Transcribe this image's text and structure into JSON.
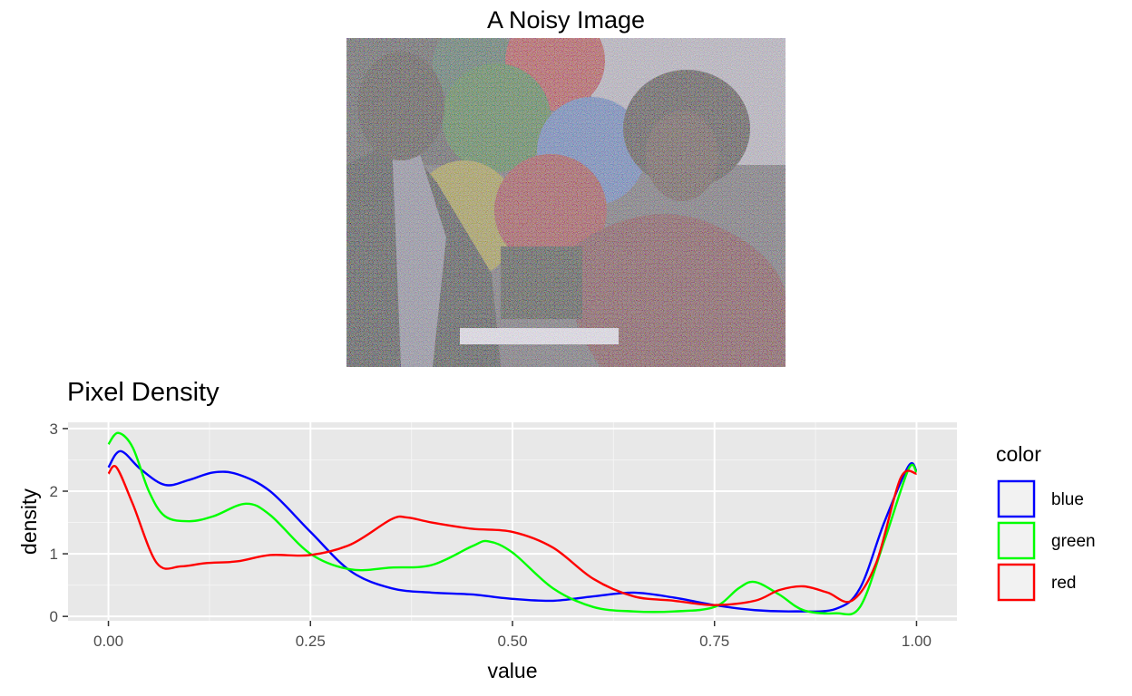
{
  "image_panel": {
    "title": "A Noisy Image"
  },
  "chart_data": {
    "type": "line",
    "title": "Pixel Density",
    "xlabel": "value",
    "ylabel": "density",
    "xlim": [
      -0.05,
      1.05
    ],
    "ylim": [
      -0.07,
      3.1
    ],
    "x_ticks": [
      0,
      0.25,
      0.5,
      0.75,
      1.0
    ],
    "x_tick_labels": [
      "0.00",
      "0.25",
      "0.50",
      "0.75",
      "1.00"
    ],
    "y_ticks": [
      0,
      1,
      2,
      3
    ],
    "y_tick_labels": [
      "0",
      "1",
      "2",
      "3"
    ],
    "grid": true,
    "background": "#e8e8e8",
    "legend": {
      "title": "color",
      "placement": "right",
      "entries": [
        "blue",
        "green",
        "red"
      ]
    },
    "series": [
      {
        "name": "blue",
        "color": "#0000ff",
        "points": [
          [
            0,
            2.38
          ],
          [
            0.015,
            2.64
          ],
          [
            0.04,
            2.35
          ],
          [
            0.07,
            2.1
          ],
          [
            0.1,
            2.18
          ],
          [
            0.13,
            2.3
          ],
          [
            0.16,
            2.27
          ],
          [
            0.2,
            2.0
          ],
          [
            0.25,
            1.35
          ],
          [
            0.3,
            0.72
          ],
          [
            0.35,
            0.45
          ],
          [
            0.4,
            0.38
          ],
          [
            0.45,
            0.35
          ],
          [
            0.5,
            0.28
          ],
          [
            0.55,
            0.25
          ],
          [
            0.6,
            0.32
          ],
          [
            0.65,
            0.38
          ],
          [
            0.7,
            0.3
          ],
          [
            0.75,
            0.18
          ],
          [
            0.8,
            0.1
          ],
          [
            0.85,
            0.08
          ],
          [
            0.9,
            0.12
          ],
          [
            0.93,
            0.45
          ],
          [
            0.96,
            1.5
          ],
          [
            0.99,
            2.4
          ],
          [
            1.0,
            2.32
          ]
        ]
      },
      {
        "name": "green",
        "color": "#00ff00",
        "points": [
          [
            0,
            2.75
          ],
          [
            0.012,
            2.93
          ],
          [
            0.03,
            2.7
          ],
          [
            0.05,
            2.0
          ],
          [
            0.07,
            1.6
          ],
          [
            0.1,
            1.52
          ],
          [
            0.13,
            1.6
          ],
          [
            0.17,
            1.8
          ],
          [
            0.2,
            1.62
          ],
          [
            0.25,
            1.0
          ],
          [
            0.3,
            0.75
          ],
          [
            0.35,
            0.78
          ],
          [
            0.4,
            0.82
          ],
          [
            0.45,
            1.12
          ],
          [
            0.47,
            1.2
          ],
          [
            0.5,
            1.02
          ],
          [
            0.55,
            0.45
          ],
          [
            0.6,
            0.15
          ],
          [
            0.65,
            0.08
          ],
          [
            0.7,
            0.08
          ],
          [
            0.75,
            0.15
          ],
          [
            0.78,
            0.45
          ],
          [
            0.8,
            0.55
          ],
          [
            0.83,
            0.35
          ],
          [
            0.86,
            0.1
          ],
          [
            0.9,
            0.05
          ],
          [
            0.93,
            0.15
          ],
          [
            0.96,
            1.2
          ],
          [
            0.99,
            2.35
          ],
          [
            1.0,
            2.3
          ]
        ]
      },
      {
        "name": "red",
        "color": "#ff0000",
        "points": [
          [
            0,
            2.28
          ],
          [
            0.01,
            2.38
          ],
          [
            0.03,
            1.8
          ],
          [
            0.06,
            0.85
          ],
          [
            0.09,
            0.8
          ],
          [
            0.12,
            0.85
          ],
          [
            0.16,
            0.88
          ],
          [
            0.2,
            0.98
          ],
          [
            0.25,
            0.98
          ],
          [
            0.3,
            1.15
          ],
          [
            0.35,
            1.55
          ],
          [
            0.37,
            1.58
          ],
          [
            0.4,
            1.5
          ],
          [
            0.45,
            1.4
          ],
          [
            0.5,
            1.35
          ],
          [
            0.55,
            1.1
          ],
          [
            0.6,
            0.6
          ],
          [
            0.65,
            0.32
          ],
          [
            0.7,
            0.25
          ],
          [
            0.75,
            0.18
          ],
          [
            0.8,
            0.25
          ],
          [
            0.83,
            0.42
          ],
          [
            0.86,
            0.48
          ],
          [
            0.89,
            0.38
          ],
          [
            0.92,
            0.25
          ],
          [
            0.95,
            0.85
          ],
          [
            0.98,
            2.2
          ],
          [
            1.0,
            2.28
          ]
        ]
      }
    ]
  }
}
